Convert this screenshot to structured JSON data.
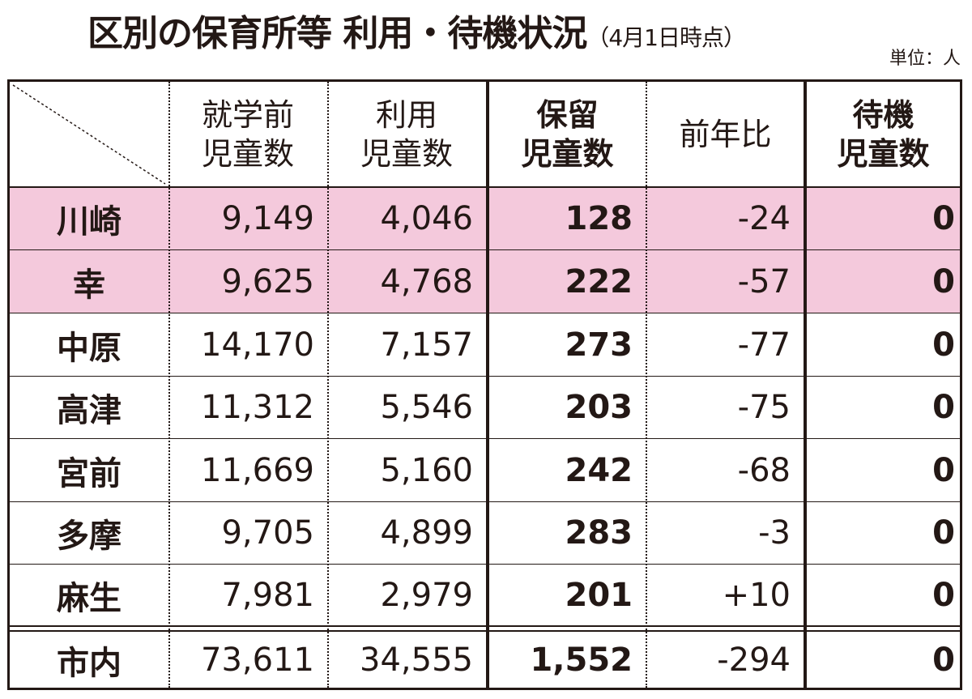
{
  "title": "区別の保育所等 利用・待機状況",
  "title_sub": "（4月1日時点）",
  "unit": "単位：人",
  "headers": {
    "c1": "就学前\n児童数",
    "c2": "利用\n児童数",
    "c3": "保留\n児童数",
    "c4": "前年比",
    "c5": "待機\n児童数"
  },
  "rows": [
    {
      "ward": "川崎",
      "preschool": "9,149",
      "using": "4,046",
      "pending": "128",
      "yoy": "-24",
      "waiting": "0"
    },
    {
      "ward": "幸",
      "preschool": "9,625",
      "using": "4,768",
      "pending": "222",
      "yoy": "-57",
      "waiting": "0"
    },
    {
      "ward": "中原",
      "preschool": "14,170",
      "using": "7,157",
      "pending": "273",
      "yoy": "-77",
      "waiting": "0"
    },
    {
      "ward": "高津",
      "preschool": "11,312",
      "using": "5,546",
      "pending": "203",
      "yoy": "-75",
      "waiting": "0"
    },
    {
      "ward": "宮前",
      "preschool": "11,669",
      "using": "5,160",
      "pending": "242",
      "yoy": "-68",
      "waiting": "0"
    },
    {
      "ward": "多摩",
      "preschool": "9,705",
      "using": "4,899",
      "pending": "283",
      "yoy": "-3",
      "waiting": "0"
    },
    {
      "ward": "麻生",
      "preschool": "7,981",
      "using": "2,979",
      "pending": "201",
      "yoy": "+10",
      "waiting": "0"
    }
  ],
  "total": {
    "ward": "市内",
    "preschool": "73,611",
    "using": "34,555",
    "pending": "1,552",
    "yoy": "-294",
    "waiting": "0"
  },
  "colors": {
    "highlight": "#f4c9dc",
    "ink": "#231815"
  }
}
